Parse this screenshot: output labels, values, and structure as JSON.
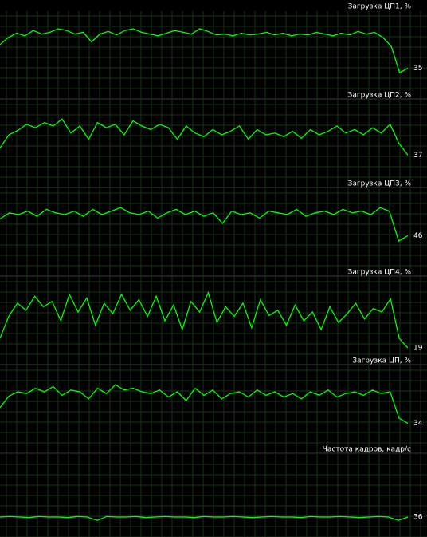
{
  "chart_data": [
    {
      "type": "line",
      "title": "Загрузка ЦП1, %",
      "color": "#00ff00",
      "grid": true,
      "ylim": [
        0,
        100
      ],
      "current": 35,
      "values": [
        62,
        70,
        75,
        72,
        78,
        74,
        76,
        80,
        78,
        74,
        76,
        65,
        74,
        77,
        73,
        78,
        80,
        76,
        74,
        72,
        75,
        78,
        76,
        74,
        80,
        77,
        73,
        74,
        72,
        75,
        73,
        74,
        76,
        73,
        75,
        72,
        74,
        73,
        76,
        74,
        72,
        75,
        73,
        77,
        74,
        76,
        70,
        60,
        30,
        35
      ]
    },
    {
      "type": "line",
      "title": "Загрузка ЦП2, %",
      "color": "#00ff00",
      "grid": true,
      "ylim": [
        0,
        100
      ],
      "current": 37,
      "values": [
        45,
        60,
        65,
        72,
        68,
        74,
        70,
        78,
        62,
        70,
        55,
        74,
        68,
        72,
        60,
        76,
        70,
        66,
        72,
        68,
        55,
        70,
        62,
        58,
        66,
        60,
        64,
        70,
        55,
        66,
        60,
        62,
        58,
        64,
        56,
        66,
        60,
        64,
        70,
        62,
        66,
        60,
        68,
        62,
        72,
        50,
        37
      ]
    },
    {
      "type": "line",
      "title": "Загрузка ЦП3, %",
      "color": "#00ff00",
      "grid": true,
      "ylim": [
        0,
        100
      ],
      "current": 46,
      "values": [
        65,
        72,
        70,
        74,
        68,
        76,
        72,
        70,
        74,
        68,
        76,
        70,
        74,
        78,
        72,
        70,
        74,
        66,
        72,
        76,
        70,
        74,
        68,
        72,
        60,
        74,
        70,
        72,
        66,
        74,
        72,
        70,
        76,
        68,
        72,
        74,
        70,
        76,
        72,
        74,
        70,
        78,
        74,
        40,
        46
      ]
    },
    {
      "type": "line",
      "title": "Загрузка ЦП4, %",
      "color": "#00ff00",
      "grid": true,
      "ylim": [
        0,
        100
      ],
      "current": 19,
      "values": [
        30,
        55,
        70,
        62,
        78,
        66,
        72,
        50,
        80,
        60,
        76,
        45,
        70,
        58,
        80,
        62,
        74,
        55,
        78,
        50,
        68,
        40,
        72,
        60,
        82,
        48,
        66,
        55,
        70,
        42,
        74,
        56,
        62,
        45,
        68,
        50,
        60,
        40,
        66,
        48,
        58,
        70,
        52,
        64,
        60,
        75,
        30,
        19
      ]
    },
    {
      "type": "line",
      "title": "Загрузка ЦП, %",
      "color": "#00ff00",
      "grid": true,
      "ylim": [
        0,
        100
      ],
      "current": 34,
      "values": [
        52,
        65,
        70,
        68,
        74,
        70,
        76,
        66,
        72,
        70,
        62,
        74,
        68,
        78,
        72,
        74,
        70,
        68,
        72,
        64,
        70,
        60,
        74,
        66,
        72,
        62,
        68,
        70,
        64,
        72,
        66,
        70,
        64,
        68,
        62,
        70,
        66,
        72,
        64,
        68,
        70,
        66,
        72,
        68,
        70,
        40,
        34
      ]
    },
    {
      "type": "line",
      "title": "Частота кадров, кадр/с",
      "color": "#00ff00",
      "grid": true,
      "ylim": [
        0,
        150
      ],
      "current": 36,
      "values": [
        36,
        37,
        36,
        35,
        37,
        36,
        36,
        35,
        37,
        36,
        30,
        37,
        36,
        36,
        37,
        35,
        36,
        37,
        36,
        36,
        35,
        37,
        36,
        36,
        37,
        36,
        35,
        36,
        37,
        36,
        36,
        35,
        37,
        36,
        36,
        37,
        36,
        35,
        36,
        37,
        36,
        30,
        36
      ]
    }
  ]
}
